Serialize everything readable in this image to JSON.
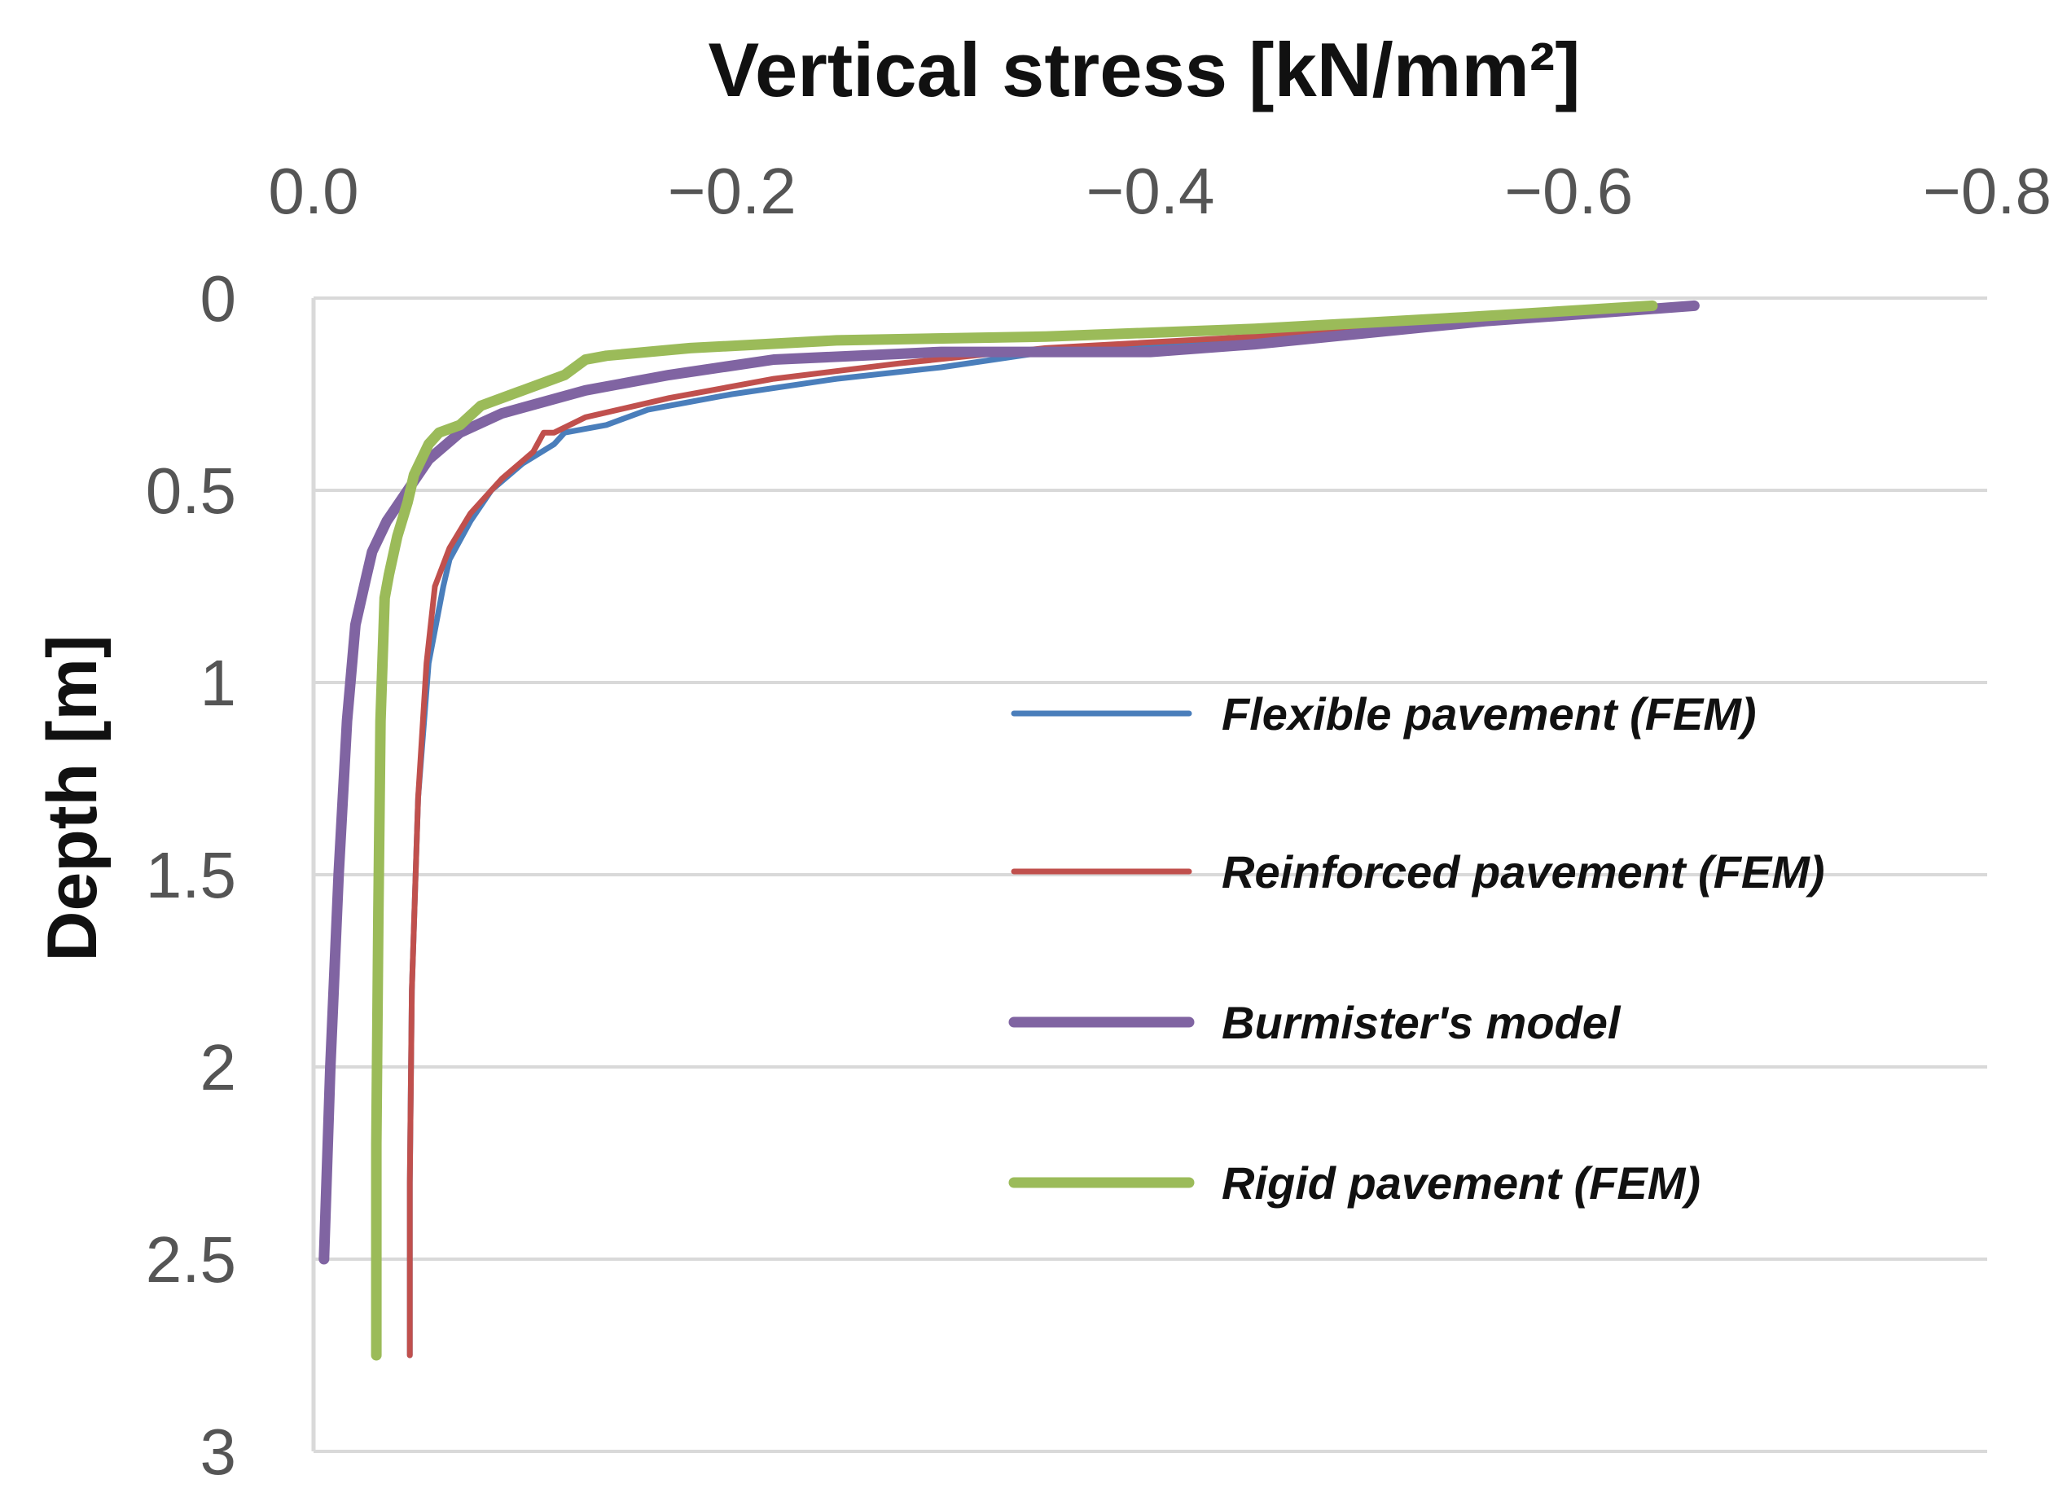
{
  "chart_data": {
    "type": "line",
    "title": "Vertical stress [kN/mm²]",
    "xlabel": "Vertical stress [kN/mm²]",
    "ylabel": "Depth [m]",
    "x_axis_position": "top",
    "y_axis_inverted": true,
    "xlim": [
      0.0,
      -0.8
    ],
    "ylim": [
      0,
      3
    ],
    "x_ticks": [
      "0.0",
      "−0.2",
      "−0.4",
      "−0.6",
      "−0.8"
    ],
    "y_ticks": [
      "0",
      "0.5",
      "1",
      "1.5",
      "2",
      "2.5",
      "3"
    ],
    "grid": "horizontal",
    "legend_position": "right",
    "series": [
      {
        "name": "Flexible pavement (FEM)",
        "color": "#4a7ebb",
        "width": 7,
        "points": [
          [
            -0.65,
            0.02
          ],
          [
            -0.55,
            0.06
          ],
          [
            -0.45,
            0.1
          ],
          [
            -0.35,
            0.14
          ],
          [
            -0.3,
            0.18
          ],
          [
            -0.25,
            0.21
          ],
          [
            -0.2,
            0.25
          ],
          [
            -0.16,
            0.29
          ],
          [
            -0.14,
            0.33
          ],
          [
            -0.12,
            0.35
          ],
          [
            -0.115,
            0.38
          ],
          [
            -0.1,
            0.43
          ],
          [
            -0.085,
            0.5
          ],
          [
            -0.075,
            0.58
          ],
          [
            -0.065,
            0.68
          ],
          [
            -0.062,
            0.75
          ],
          [
            -0.055,
            0.95
          ],
          [
            -0.05,
            1.3
          ],
          [
            -0.047,
            1.8
          ],
          [
            -0.046,
            2.3
          ],
          [
            -0.046,
            2.75
          ]
        ]
      },
      {
        "name": "Reinforced pavement (FEM)",
        "color": "#c0504d",
        "width": 7,
        "points": [
          [
            -0.65,
            0.02
          ],
          [
            -0.55,
            0.06
          ],
          [
            -0.45,
            0.1
          ],
          [
            -0.35,
            0.13
          ],
          [
            -0.28,
            0.17
          ],
          [
            -0.22,
            0.21
          ],
          [
            -0.17,
            0.26
          ],
          [
            -0.13,
            0.31
          ],
          [
            -0.115,
            0.35
          ],
          [
            -0.11,
            0.35
          ],
          [
            -0.105,
            0.4
          ],
          [
            -0.09,
            0.47
          ],
          [
            -0.075,
            0.56
          ],
          [
            -0.065,
            0.65
          ],
          [
            -0.058,
            0.75
          ],
          [
            -0.054,
            0.95
          ],
          [
            -0.05,
            1.3
          ],
          [
            -0.047,
            1.8
          ],
          [
            -0.046,
            2.3
          ],
          [
            -0.046,
            2.75
          ]
        ]
      },
      {
        "name": "Burmister's model",
        "color": "#8064a2",
        "width": 13,
        "points": [
          [
            -0.66,
            0.02
          ],
          [
            -0.56,
            0.06
          ],
          [
            -0.45,
            0.12
          ],
          [
            -0.4,
            0.14
          ],
          [
            -0.3,
            0.14
          ],
          [
            -0.22,
            0.16
          ],
          [
            -0.17,
            0.2
          ],
          [
            -0.13,
            0.24
          ],
          [
            -0.09,
            0.3
          ],
          [
            -0.07,
            0.35
          ],
          [
            -0.055,
            0.42
          ],
          [
            -0.045,
            0.5
          ],
          [
            -0.035,
            0.58
          ],
          [
            -0.028,
            0.66
          ],
          [
            -0.025,
            0.73
          ],
          [
            -0.02,
            0.85
          ],
          [
            -0.016,
            1.1
          ],
          [
            -0.012,
            1.5
          ],
          [
            -0.008,
            2.0
          ],
          [
            -0.005,
            2.5
          ]
        ]
      },
      {
        "name": "Rigid pavement (FEM)",
        "color": "#9bbb59",
        "width": 13,
        "points": [
          [
            -0.64,
            0.02
          ],
          [
            -0.55,
            0.05
          ],
          [
            -0.45,
            0.08
          ],
          [
            -0.35,
            0.1
          ],
          [
            -0.25,
            0.11
          ],
          [
            -0.18,
            0.13
          ],
          [
            -0.14,
            0.15
          ],
          [
            -0.13,
            0.16
          ],
          [
            -0.12,
            0.2
          ],
          [
            -0.1,
            0.24
          ],
          [
            -0.08,
            0.28
          ],
          [
            -0.07,
            0.33
          ],
          [
            -0.06,
            0.35
          ],
          [
            -0.055,
            0.38
          ],
          [
            -0.048,
            0.46
          ],
          [
            -0.045,
            0.53
          ],
          [
            -0.04,
            0.62
          ],
          [
            -0.036,
            0.72
          ],
          [
            -0.034,
            0.78
          ],
          [
            -0.032,
            1.1
          ],
          [
            -0.031,
            1.6
          ],
          [
            -0.03,
            2.2
          ],
          [
            -0.03,
            2.75
          ]
        ]
      }
    ]
  }
}
